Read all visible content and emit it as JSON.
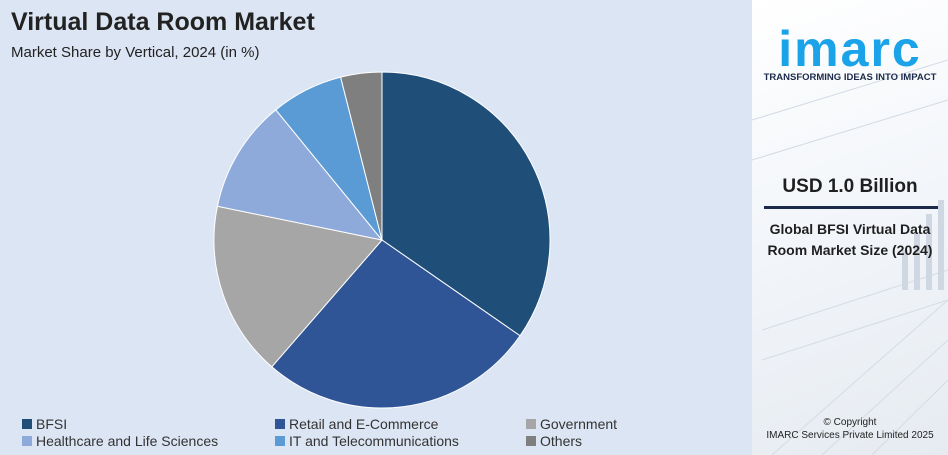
{
  "header": {
    "title": "Virtual Data Room Market",
    "subtitle": "Market Share by Vertical, 2024 (in %)"
  },
  "chart_data": {
    "type": "pie",
    "categories": [
      "BFSI",
      "Retail and E-Commerce",
      "Government",
      "Healthcare and Life Sciences",
      "IT and Telecommunications",
      "Others"
    ],
    "values": [
      35,
      27,
      17,
      11,
      7,
      4
    ],
    "colors": [
      "#1f4e79",
      "#2f5597",
      "#a6a6a6",
      "#8eaadb",
      "#5b9bd5",
      "#7f7f7f"
    ],
    "title": "Virtual Data Room Market",
    "subtitle": "Market Share by Vertical, 2024 (in %)",
    "legend_position": "bottom"
  },
  "legend": {
    "items": [
      {
        "label": "BFSI",
        "color": "#1f4e79"
      },
      {
        "label": "Retail and E-Commerce",
        "color": "#2f5597"
      },
      {
        "label": "Government",
        "color": "#a6a6a6"
      },
      {
        "label": "Healthcare and Life Sciences",
        "color": "#8eaadb"
      },
      {
        "label": "IT and Telecommunications",
        "color": "#5b9bd5"
      },
      {
        "label": "Others",
        "color": "#7f7f7f"
      }
    ]
  },
  "sidebar": {
    "logo_text": "imarc",
    "tagline": "TRANSFORMING IDEAS INTO IMPACT",
    "value": "USD 1.0 Billion",
    "description": "Global BFSI Virtual Data Room Market Size (2024)",
    "copyright_line1": "© Copyright",
    "copyright_line2": "IMARC Services Private Limited 2025",
    "brand_color": "#1aa3e8"
  }
}
